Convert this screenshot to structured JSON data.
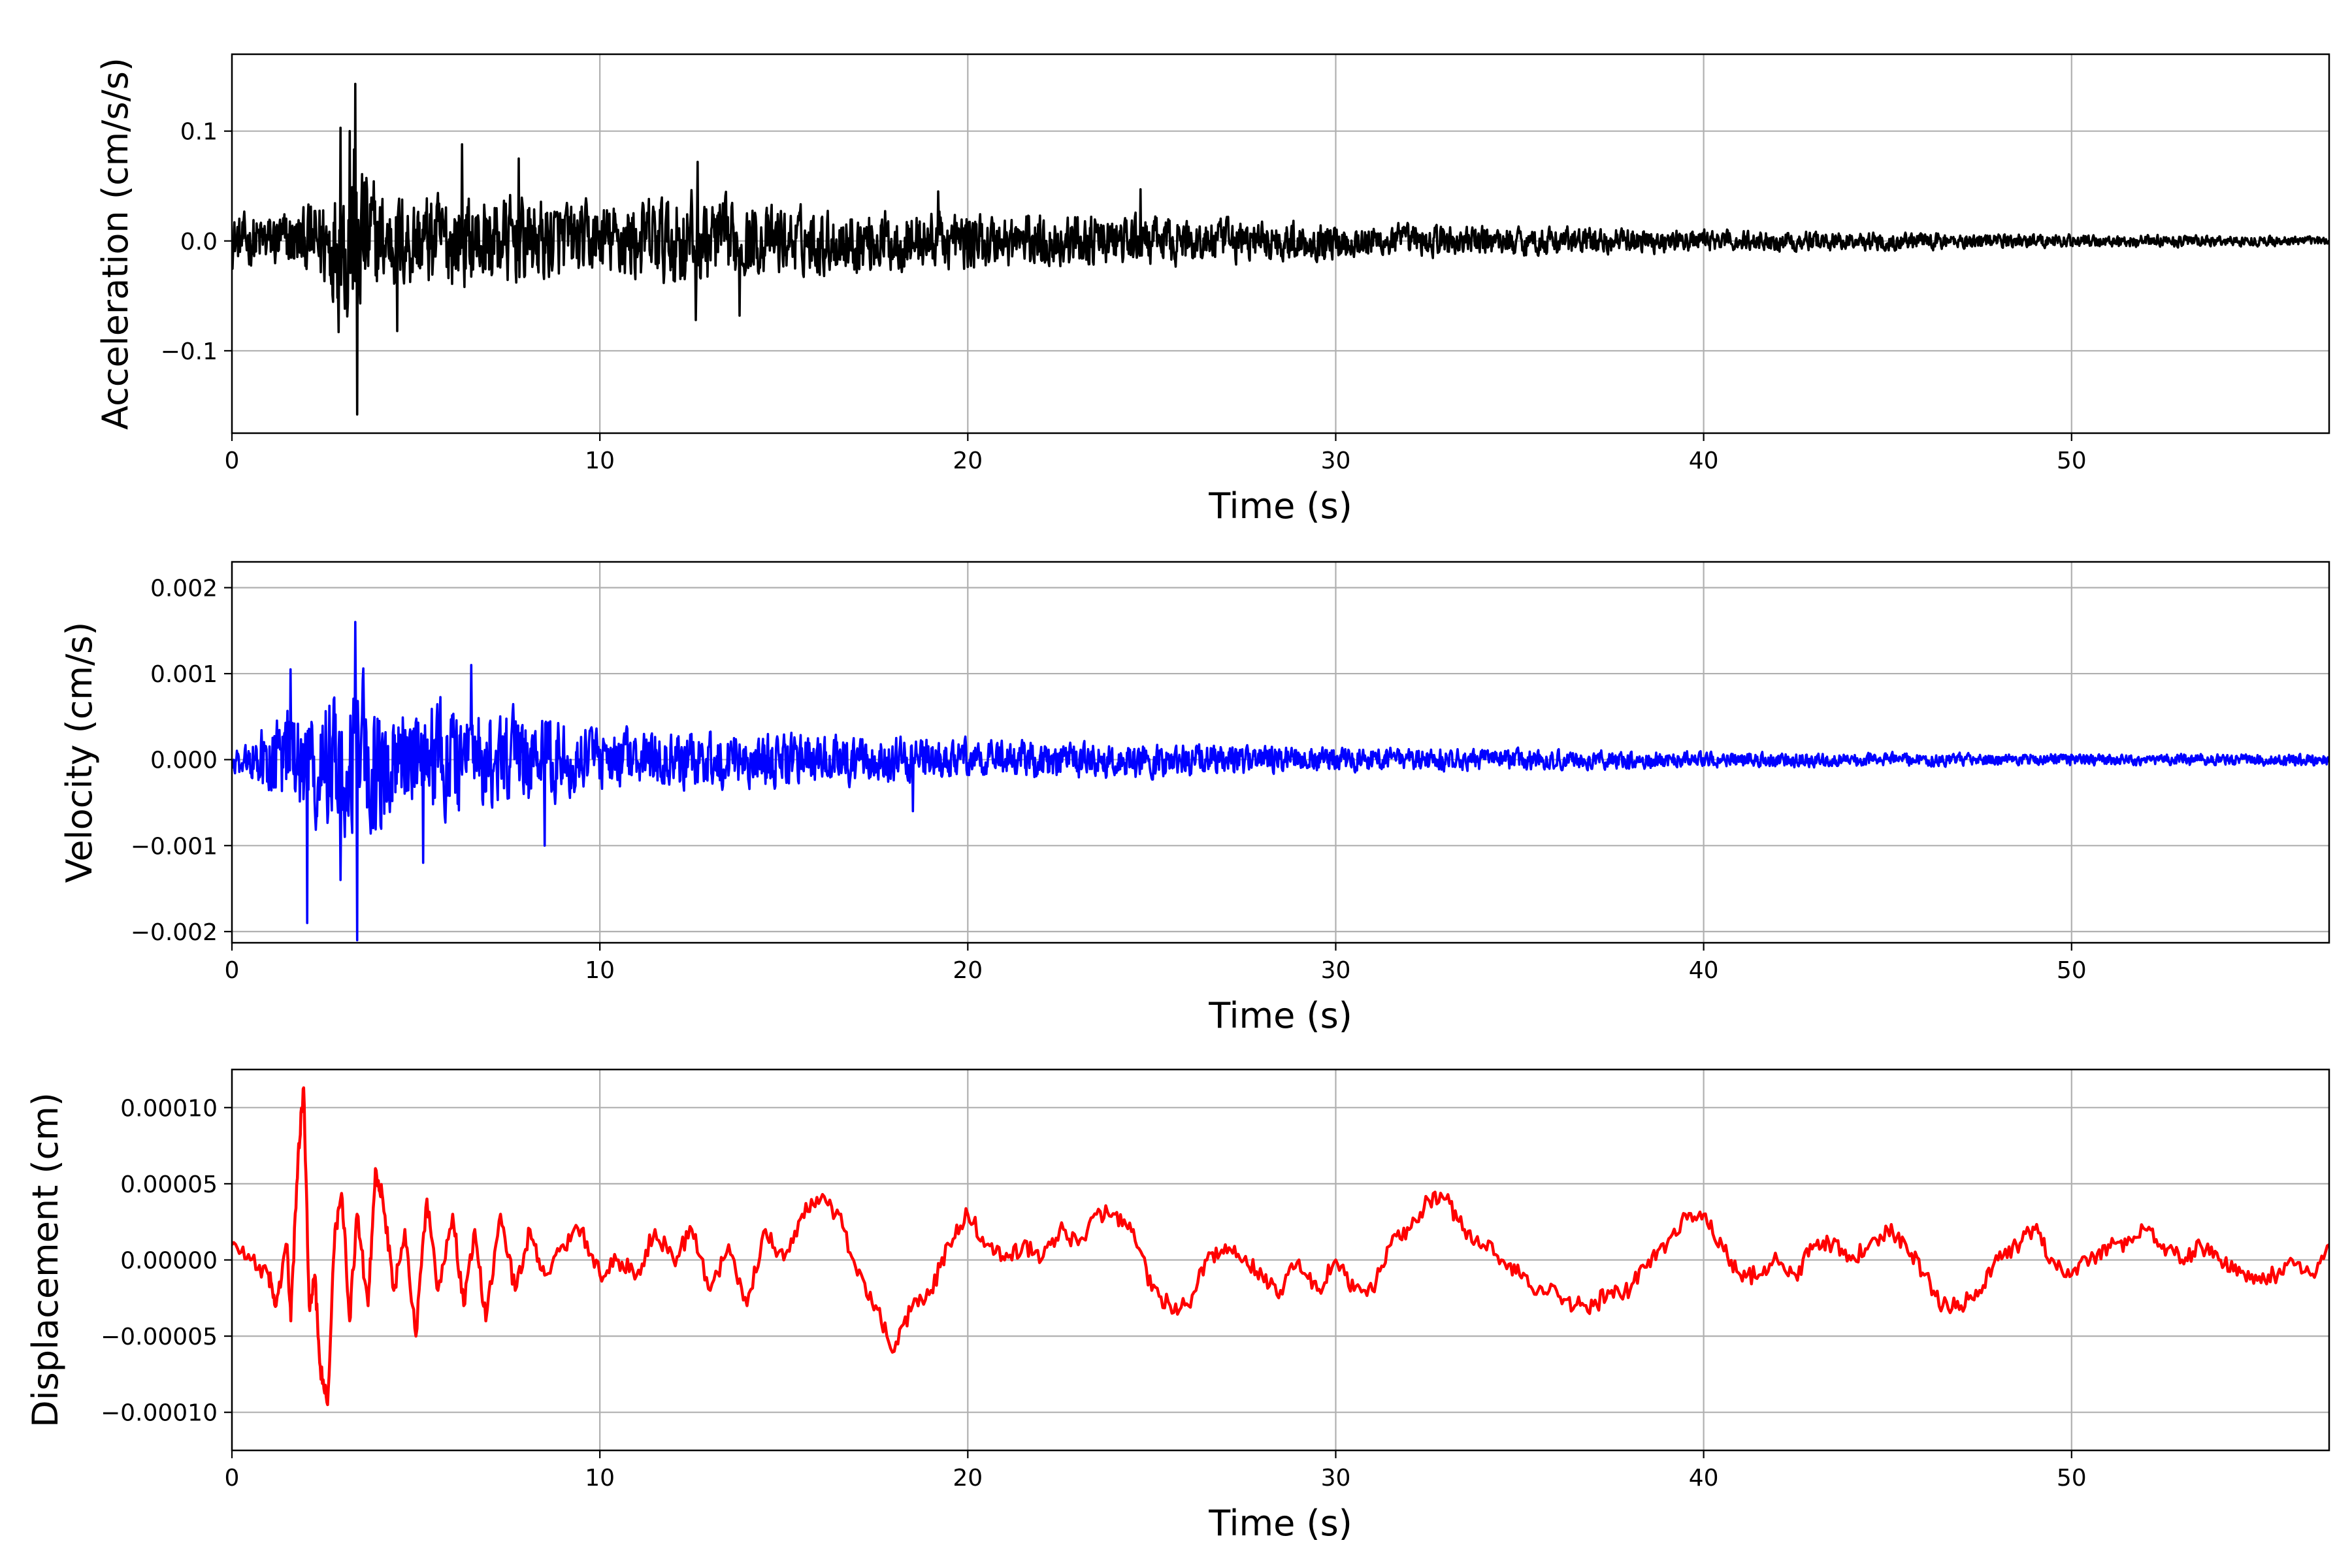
{
  "figure": {
    "background": "#ffffff",
    "grid_color": "#b0b0b0"
  },
  "chart_data": [
    {
      "id": "acceleration",
      "type": "line",
      "title": "",
      "xlabel": "Time (s)",
      "ylabel": "Acceleration (cm/s/s)",
      "xlim": [
        0,
        57
      ],
      "ylim": [
        -0.175,
        0.17
      ],
      "xticks": [
        0,
        10,
        20,
        30,
        40,
        50
      ],
      "xtick_labels": [
        "0",
        "10",
        "20",
        "30",
        "40",
        "50"
      ],
      "yticks": [
        -0.1,
        0.0,
        0.1
      ],
      "ytick_labels": [
        "−0.1",
        "0.0",
        "0.1"
      ],
      "grid": true,
      "series": [
        {
          "color": "#000000",
          "envelope": {
            "t": [
              0,
              2,
              3.0,
              3.3,
              4,
              6,
              8,
              10,
              12.5,
              14,
              20,
              25,
              30,
              35,
              40,
              45,
              50,
              55,
              57
            ],
            "amp": [
              0.035,
              0.045,
              0.1,
              0.15,
              0.07,
              0.065,
              0.06,
              0.05,
              0.07,
              0.048,
              0.04,
              0.033,
              0.025,
              0.02,
              0.015,
              0.012,
              0.009,
              0.007,
              0.006
            ]
          },
          "spikes": [
            {
              "t": 3.35,
              "v": 0.143
            },
            {
              "t": 3.4,
              "v": -0.158
            },
            {
              "t": 2.95,
              "v": 0.103
            },
            {
              "t": 3.2,
              "v": 0.1
            },
            {
              "t": 2.9,
              "v": -0.083
            },
            {
              "t": 6.25,
              "v": 0.088
            },
            {
              "t": 7.8,
              "v": 0.075
            },
            {
              "t": 12.65,
              "v": 0.072
            },
            {
              "t": 12.6,
              "v": -0.072
            },
            {
              "t": 13.8,
              "v": -0.068
            },
            {
              "t": 4.5,
              "v": -0.082
            },
            {
              "t": 24.7,
              "v": 0.047
            },
            {
              "t": 19.2,
              "v": 0.045
            }
          ]
        }
      ]
    },
    {
      "id": "velocity",
      "type": "line",
      "title": "",
      "xlabel": "Time (s)",
      "ylabel": "Velocity (cm/s)",
      "xlim": [
        0,
        57
      ],
      "ylim": [
        -0.00213,
        0.0023
      ],
      "xticks": [
        0,
        10,
        20,
        30,
        40,
        50
      ],
      "xtick_labels": [
        "0",
        "10",
        "20",
        "30",
        "40",
        "50"
      ],
      "yticks": [
        -0.002,
        -0.001,
        0.0,
        0.001,
        0.002
      ],
      "ytick_labels": [
        "−0.002",
        "−0.001",
        "0.000",
        "0.001",
        "0.002"
      ],
      "grid": true,
      "series": [
        {
          "color": "#0000ff",
          "envelope": {
            "t": [
              0,
              1.5,
              2,
              3,
              3.4,
              4.5,
              6,
              8,
              10,
              12.5,
              15,
              20,
              25,
              30,
              35,
              40,
              45,
              50,
              55,
              57
            ],
            "amp": [
              0.0002,
              0.00085,
              0.001,
              0.0012,
              0.0015,
              0.0009,
              0.001,
              0.0008,
              0.0005,
              0.0005,
              0.00045,
              0.00035,
              0.0003,
              0.00022,
              0.00018,
              0.00014,
              0.00012,
              0.0001,
              0.0001,
              0.0001
            ]
          },
          "spikes": [
            {
              "t": 3.35,
              "v": 0.0016
            },
            {
              "t": 3.4,
              "v": -0.0021
            },
            {
              "t": 2.05,
              "v": -0.0019
            },
            {
              "t": 1.6,
              "v": 0.00105
            },
            {
              "t": 2.95,
              "v": -0.0014
            },
            {
              "t": 5.2,
              "v": -0.0012
            },
            {
              "t": 8.5,
              "v": -0.001
            },
            {
              "t": 6.5,
              "v": 0.0011
            },
            {
              "t": 18.5,
              "v": -0.0006
            }
          ]
        }
      ]
    },
    {
      "id": "displacement",
      "type": "line",
      "title": "",
      "xlabel": "Time (s)",
      "ylabel": "Displacement (cm)",
      "xlim": [
        0,
        57
      ],
      "ylim": [
        -0.000125,
        0.000125
      ],
      "xticks": [
        0,
        10,
        20,
        30,
        40,
        50
      ],
      "xtick_labels": [
        "0",
        "10",
        "20",
        "30",
        "40",
        "50"
      ],
      "yticks": [
        -0.0001,
        -5e-05,
        0.0,
        5e-05,
        0.0001
      ],
      "ytick_labels": [
        "−0.00010",
        "−0.00005",
        "0.00000",
        "0.00005",
        "0.00010"
      ],
      "grid": true,
      "series": [
        {
          "color": "#ff0000",
          "x": [
            0,
            0.5,
            1.0,
            1.2,
            1.5,
            1.6,
            1.8,
            1.95,
            2.1,
            2.25,
            2.4,
            2.6,
            2.8,
            3.0,
            3.2,
            3.4,
            3.7,
            3.9,
            4.1,
            4.4,
            4.7,
            5.0,
            5.3,
            5.6,
            6.0,
            6.3,
            6.6,
            6.9,
            7.3,
            7.7,
            8.1,
            8.5,
            9.0,
            9.5,
            10.0,
            10.5,
            11.0,
            11.5,
            12.0,
            12.5,
            13.0,
            13.5,
            14.0,
            14.5,
            15.0,
            15.5,
            16.0,
            16.5,
            17.0,
            17.5,
            18.0,
            18.5,
            19.0,
            19.5,
            20.0,
            20.5,
            21.0,
            21.5,
            22.0,
            22.5,
            23.0,
            23.5,
            24.0,
            24.5,
            25.0,
            25.5,
            26.0,
            26.5,
            27.0,
            27.5,
            28.0,
            28.5,
            29.0,
            29.5,
            30.0,
            30.5,
            31.0,
            31.5,
            32.0,
            32.5,
            33.0,
            33.5,
            34.0,
            34.5,
            35.0,
            35.5,
            36.0,
            36.5,
            37.0,
            37.5,
            38.0,
            38.5,
            39.0,
            39.5,
            40.0,
            40.5,
            41.0,
            41.5,
            42.0,
            42.5,
            43.0,
            43.5,
            44.0,
            44.5,
            45.0,
            45.5,
            46.0,
            46.5,
            47.0,
            47.5,
            48.0,
            48.5,
            49.0,
            49.5,
            50.0,
            50.5,
            51.0,
            51.5,
            52.0,
            52.5,
            53.0,
            53.5,
            54.0,
            54.5,
            55.0,
            55.5,
            56.0,
            56.5,
            57.0
          ],
          "y": [
            1e-05,
            0.0,
            -1e-05,
            -3e-05,
            1e-05,
            -4e-05,
            7e-05,
            0.000113,
            -3e-05,
            -1e-05,
            -7e-05,
            -9.5e-05,
            2e-05,
            4e-05,
            -4e-05,
            3e-05,
            -3e-05,
            6e-05,
            4e-05,
            -2e-05,
            2e-05,
            -5e-05,
            4e-05,
            -2e-05,
            3e-05,
            -3e-05,
            2e-05,
            -4e-05,
            3e-05,
            -2e-05,
            2e-05,
            -1e-05,
            1e-05,
            2e-05,
            -1e-05,
            0.0,
            -1e-05,
            2e-05,
            0.0,
            2e-05,
            -2e-05,
            1e-05,
            -3e-05,
            2e-05,
            0.0,
            3e-05,
            4e-05,
            3e-05,
            -1e-05,
            -3e-05,
            -6e-05,
            -3e-05,
            -2e-05,
            1e-05,
            3e-05,
            1e-05,
            0.0,
            1e-05,
            0.0,
            2e-05,
            1e-05,
            3e-05,
            3e-05,
            2e-05,
            -2e-05,
            -3e-05,
            -3e-05,
            0.0,
            1e-05,
            0.0,
            -1e-05,
            -2e-05,
            0.0,
            -2e-05,
            0.0,
            -2e-05,
            -2e-05,
            1e-05,
            2e-05,
            4e-05,
            4e-05,
            2e-05,
            1e-05,
            0.0,
            -1e-05,
            -2e-05,
            -2e-05,
            -3e-05,
            -3e-05,
            -2e-05,
            -2e-05,
            0.0,
            1e-05,
            3e-05,
            3e-05,
            1e-05,
            -1e-05,
            -1e-05,
            0.0,
            -1e-05,
            1e-05,
            1e-05,
            0.0,
            1e-05,
            2e-05,
            1e-05,
            -1e-05,
            -3e-05,
            -3e-05,
            -2e-05,
            0.0,
            1e-05,
            2e-05,
            0.0,
            -1e-05,
            0.0,
            1e-05,
            1e-05,
            2e-05,
            1e-05,
            0.0,
            1e-05,
            0.0,
            -1e-05,
            -1e-05,
            -1e-05,
            0.0,
            -1e-05,
            1e-05
          ]
        }
      ]
    }
  ]
}
